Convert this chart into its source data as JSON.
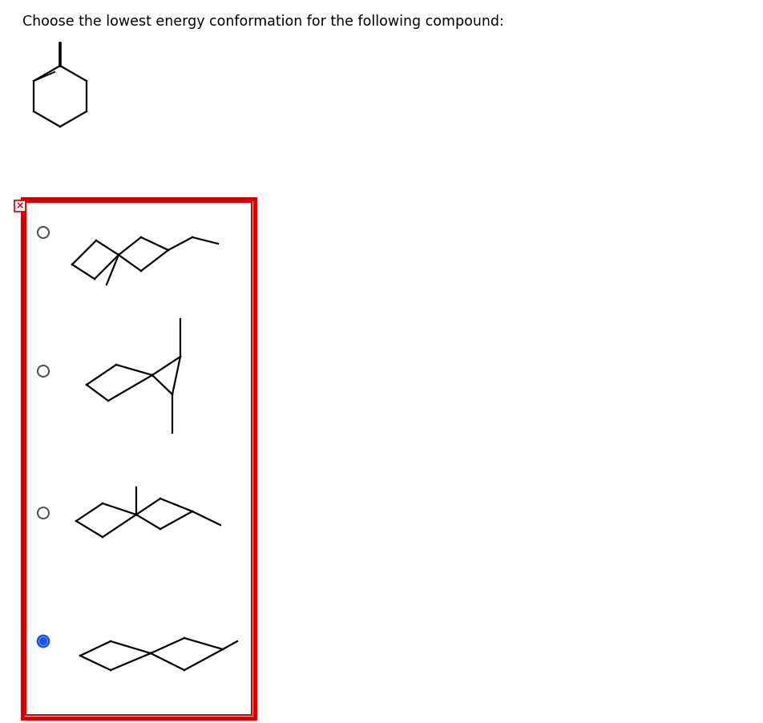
{
  "title": "Choose the lowest energy conformation for the following compound:",
  "title_fontsize": 12.5,
  "white": "#ffffff",
  "black": "#000000",
  "red": "#cc0000",
  "blue": "#1a56db",
  "gray": "#555555",
  "lw": 1.6
}
